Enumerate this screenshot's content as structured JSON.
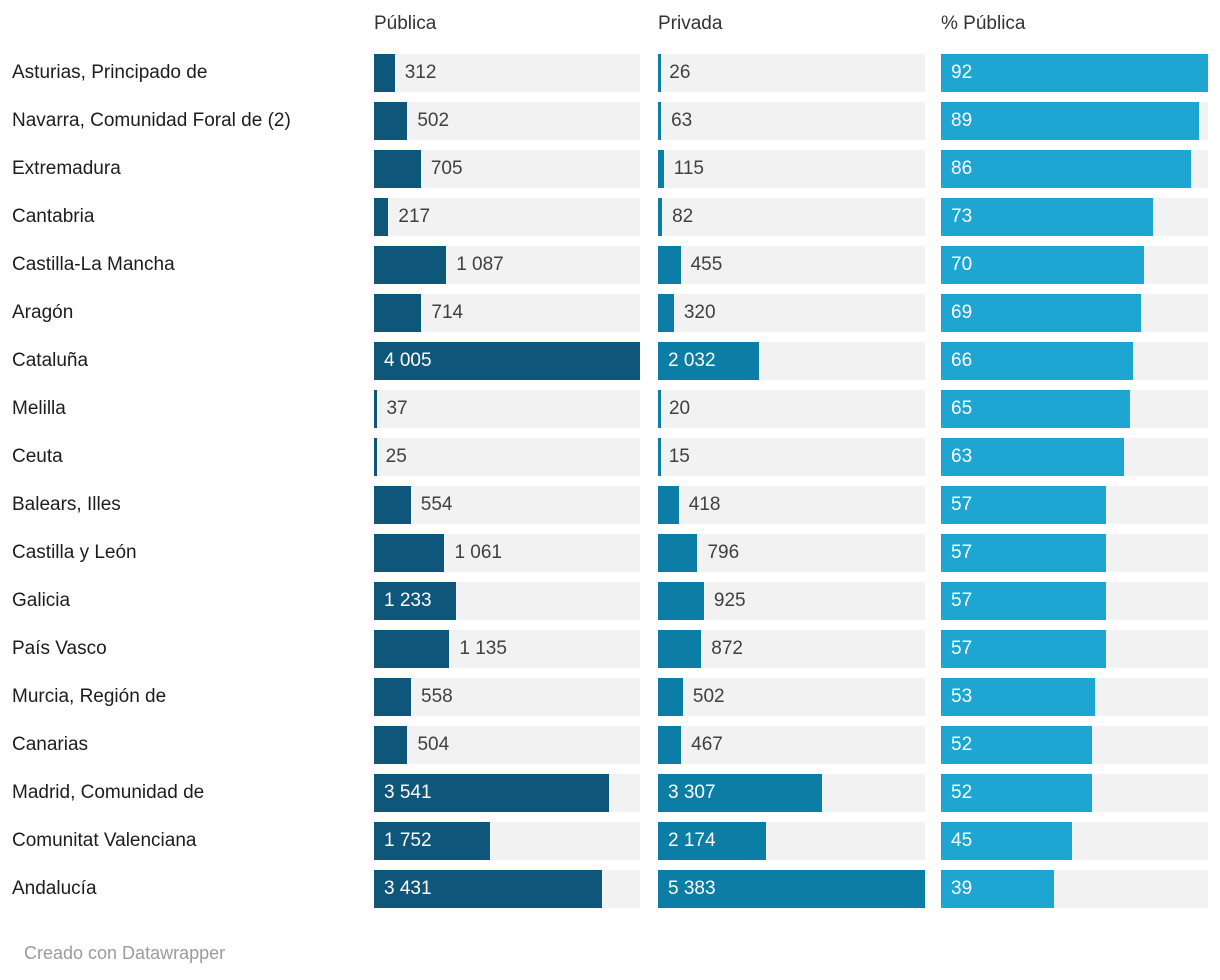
{
  "header": {
    "col1": "Pública",
    "col2": "Privada",
    "col3": "% Pública"
  },
  "footer": {
    "attribution": "Creado con Datawrapper"
  },
  "colors": {
    "publica_bar": "#0e577a",
    "privada_bar": "#0c7ea6",
    "pct_publica_bar": "#1fa5d2",
    "track_background": "#f2f2f2",
    "inside_label": "#ffffff",
    "outside_label": "#404040"
  },
  "chart_data": {
    "type": "bar",
    "orientation": "horizontal",
    "title": "",
    "legend_position": "column-headers",
    "grid": false,
    "categories": [
      "Asturias, Principado de",
      "Navarra, Comunidad Foral de (2)",
      "Extremadura",
      "Cantabria",
      "Castilla-La Mancha",
      "Aragón",
      "Cataluña",
      "Melilla",
      "Ceuta",
      "Balears, Illes",
      "Castilla y León",
      "Galicia",
      "País Vasco",
      "Murcia, Región de",
      "Canarias",
      "Madrid, Comunidad de",
      "Comunitat Valenciana",
      "Andalucía"
    ],
    "series": [
      {
        "name": "Pública",
        "color": "#0e577a",
        "axis_max": 4005,
        "values": [
          312,
          502,
          705,
          217,
          1087,
          714,
          4005,
          37,
          25,
          554,
          1061,
          1233,
          1135,
          558,
          504,
          3541,
          1752,
          3431
        ],
        "labels": [
          "312",
          "502",
          "705",
          "217",
          "1 087",
          "714",
          "4 005",
          "37",
          "25",
          "554",
          "1 061",
          "1 233",
          "1 135",
          "558",
          "504",
          "3 541",
          "1 752",
          "3 431"
        ],
        "label_inside": [
          false,
          false,
          false,
          false,
          false,
          false,
          true,
          false,
          false,
          false,
          false,
          true,
          false,
          false,
          false,
          true,
          true,
          true
        ]
      },
      {
        "name": "Privada",
        "color": "#0c7ea6",
        "axis_max": 5383,
        "values": [
          26,
          63,
          115,
          82,
          455,
          320,
          2032,
          20,
          15,
          418,
          796,
          925,
          872,
          502,
          467,
          3307,
          2174,
          5383
        ],
        "labels": [
          "26",
          "63",
          "115",
          "82",
          "455",
          "320",
          "2 032",
          "20",
          "15",
          "418",
          "796",
          "925",
          "872",
          "502",
          "467",
          "3 307",
          "2 174",
          "5 383"
        ],
        "label_inside": [
          false,
          false,
          false,
          false,
          false,
          false,
          true,
          false,
          false,
          false,
          false,
          false,
          false,
          false,
          false,
          true,
          true,
          true
        ]
      },
      {
        "name": "% Pública",
        "color": "#1fa5d2",
        "axis_max": 92,
        "values": [
          92,
          89,
          86,
          73,
          70,
          69,
          66,
          65,
          63,
          57,
          57,
          57,
          57,
          53,
          52,
          52,
          45,
          39
        ],
        "labels": [
          "92",
          "89",
          "86",
          "73",
          "70",
          "69",
          "66",
          "65",
          "63",
          "57",
          "57",
          "57",
          "57",
          "53",
          "52",
          "52",
          "45",
          "39"
        ],
        "label_inside": [
          true,
          true,
          true,
          true,
          true,
          true,
          true,
          true,
          true,
          true,
          true,
          true,
          true,
          true,
          true,
          true,
          true,
          true
        ]
      }
    ]
  }
}
